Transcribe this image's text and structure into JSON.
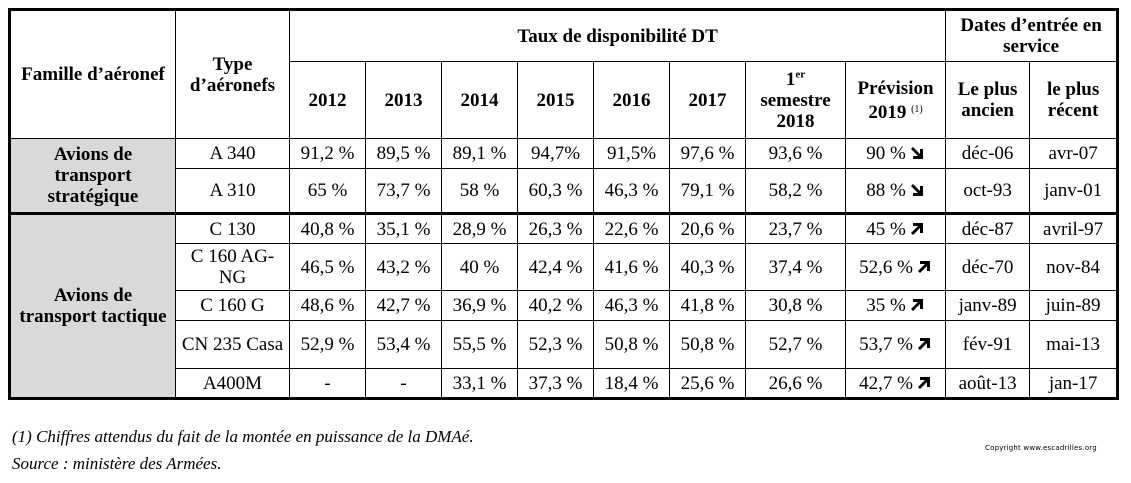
{
  "table": {
    "header": {
      "famille": "Famille d’aéronef",
      "type": "Type d’aéronefs",
      "taux": "Taux de disponibilité DT",
      "dates": "Dates d’entrée en service",
      "years": [
        "2012",
        "2013",
        "2014",
        "2015",
        "2016",
        "2017"
      ],
      "semestre_num": "1",
      "semestre_sup": "er",
      "semestre_rest": "semestre 2018",
      "prevision": "Prévision 2019",
      "prevision_note": "(1)",
      "plus_ancien": "Le plus ancien",
      "plus_recent": "le plus récent"
    },
    "families": [
      {
        "label": "Avions de transport stratégique"
      },
      {
        "label": "Avions de transport tactique"
      }
    ],
    "rows": [
      {
        "type": "A 340",
        "values": [
          "91,2 %",
          "89,5 %",
          "89,1 %",
          "94,7%",
          "91,5%",
          "97,6 %",
          "93,6 %"
        ],
        "prevision": "90 %",
        "trend": "down",
        "ancien": "déc-06",
        "recent": "avr-07"
      },
      {
        "type": "A 310",
        "values": [
          "65 %",
          "73,7 %",
          "58 %",
          "60,3 %",
          "46,3 %",
          "79,1 %",
          "58,2 %"
        ],
        "prevision": "88 %",
        "trend": "down",
        "ancien": "oct-93",
        "recent": "janv-01"
      },
      {
        "type": "C 130",
        "values": [
          "40,8 %",
          "35,1 %",
          "28,9 %",
          "26,3 %",
          "22,6 %",
          "20,6 %",
          "23,7 %"
        ],
        "prevision": "45 %",
        "trend": "up",
        "ancien": "déc-87",
        "recent": "avril-97"
      },
      {
        "type": "C 160 AG-NG",
        "values": [
          "46,5 %",
          "43,2 %",
          "40 %",
          "42,4 %",
          "41,6 %",
          "40,3 %",
          "37,4 %"
        ],
        "prevision": "52,6 %",
        "trend": "up",
        "ancien": "déc-70",
        "recent": "nov-84"
      },
      {
        "type": "C 160 G",
        "values": [
          "48,6 %",
          "42,7 %",
          "36,9 %",
          "40,2 %",
          "46,3 %",
          "41,8 %",
          "30,8 %"
        ],
        "prevision": "35 %",
        "trend": "up",
        "ancien": "janv-89",
        "recent": "juin-89"
      },
      {
        "type": "CN 235 Casa",
        "values": [
          "52,9 %",
          "53,4 %",
          "55,5 %",
          "52,3 %",
          "50,8 %",
          "50,8 %",
          "52,7 %"
        ],
        "prevision": "53,7 %",
        "trend": "up",
        "ancien": "fév-91",
        "recent": "mai-13"
      },
      {
        "type": "A400M",
        "values": [
          "-",
          "-",
          "33,1 %",
          "37,3 %",
          "18,4 %",
          "25,6 %",
          "26,6 %"
        ],
        "prevision": "42,7 %",
        "trend": "up",
        "ancien": "août-13",
        "recent": "jan-17"
      }
    ]
  },
  "notes": {
    "footnote": "(1) Chiffres attendus du fait de la montée en puissance de la DMAé.",
    "source": "Source : ministère des Armées."
  },
  "copyright": "Copyright www.escadrilles.org",
  "icons": {
    "down": "arrow-down-right-icon",
    "up": "arrow-up-right-icon"
  }
}
